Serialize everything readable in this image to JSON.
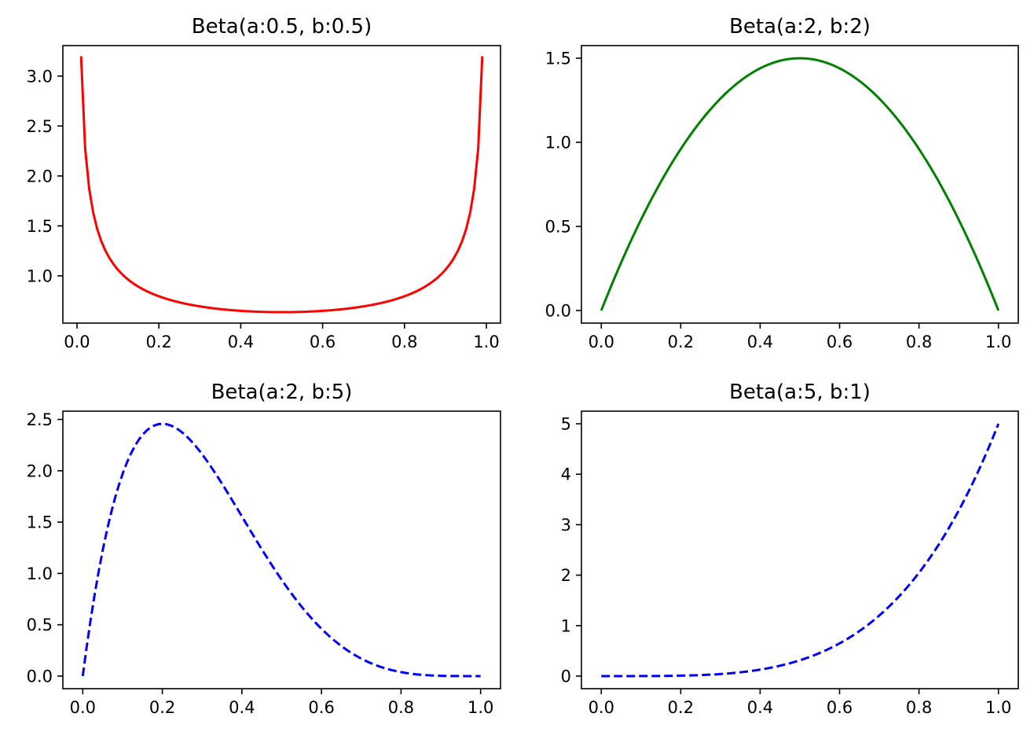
{
  "chart_data": [
    {
      "type": "line",
      "title": "Beta(a:0.5, b:0.5)",
      "a": 0.5,
      "b": 0.5,
      "color": "#ff0000",
      "linestyle": "solid",
      "xlim": [
        -0.0345,
        1.0345
      ],
      "ylim": [
        0.5269,
        3.305
      ],
      "x_range": [
        0.01,
        0.99
      ],
      "xticks": [
        0.0,
        0.2,
        0.4,
        0.6,
        0.8,
        1.0
      ],
      "xtick_labels": [
        "0.0",
        "0.2",
        "0.4",
        "0.6",
        "0.8",
        "1.0"
      ],
      "yticks": [
        1.0,
        1.5,
        2.0,
        2.5,
        3.0
      ],
      "ytick_labels": [
        "1.0",
        "1.5",
        "2.0",
        "2.5",
        "3.0"
      ]
    },
    {
      "type": "line",
      "title": "Beta(a:2, b:2)",
      "a": 2,
      "b": 2,
      "color": "#008000",
      "linestyle": "solid",
      "xlim": [
        -0.05,
        1.05
      ],
      "ylim": [
        -0.075,
        1.575
      ],
      "x_range": [
        0.0,
        1.0
      ],
      "xticks": [
        0.0,
        0.2,
        0.4,
        0.6,
        0.8,
        1.0
      ],
      "xtick_labels": [
        "0.0",
        "0.2",
        "0.4",
        "0.6",
        "0.8",
        "1.0"
      ],
      "yticks": [
        0.0,
        0.5,
        1.0,
        1.5
      ],
      "ytick_labels": [
        "0.0",
        "0.5",
        "1.0",
        "1.5"
      ]
    },
    {
      "type": "line",
      "title": "Beta(a:2, b:5)",
      "a": 2,
      "b": 5,
      "color": "#0000ff",
      "linestyle": "dashed",
      "xlim": [
        -0.05,
        1.05
      ],
      "ylim": [
        -0.1229,
        2.5805
      ],
      "x_range": [
        0.0,
        1.0
      ],
      "xticks": [
        0.0,
        0.2,
        0.4,
        0.6,
        0.8,
        1.0
      ],
      "xtick_labels": [
        "0.0",
        "0.2",
        "0.4",
        "0.6",
        "0.8",
        "1.0"
      ],
      "yticks": [
        0.0,
        0.5,
        1.0,
        1.5,
        2.0,
        2.5
      ],
      "ytick_labels": [
        "0.0",
        "0.5",
        "1.0",
        "1.5",
        "2.0",
        "2.5"
      ]
    },
    {
      "type": "line",
      "title": "Beta(a:5, b:1)",
      "a": 5,
      "b": 1,
      "color": "#0000ff",
      "linestyle": "dashed",
      "xlim": [
        -0.05,
        1.05
      ],
      "ylim": [
        -0.25,
        5.25
      ],
      "x_range": [
        0.0,
        1.0
      ],
      "xticks": [
        0.0,
        0.2,
        0.4,
        0.6,
        0.8,
        1.0
      ],
      "xtick_labels": [
        "0.0",
        "0.2",
        "0.4",
        "0.6",
        "0.8",
        "1.0"
      ],
      "yticks": [
        0,
        1,
        2,
        3,
        4,
        5
      ],
      "ytick_labels": [
        "0",
        "1",
        "2",
        "3",
        "4",
        "5"
      ]
    }
  ]
}
